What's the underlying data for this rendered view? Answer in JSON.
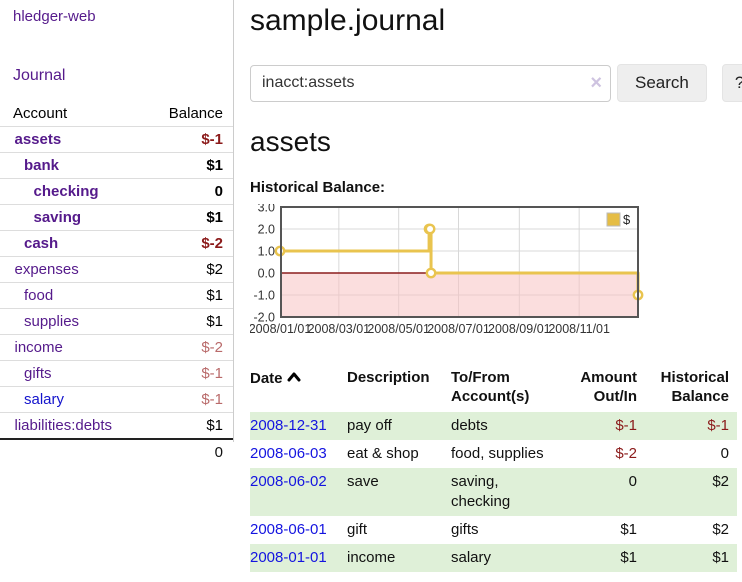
{
  "app": {
    "title": "hledger-web",
    "nav_journal": "Journal"
  },
  "sidebar": {
    "table": {
      "account_header": "Account",
      "balance_header": "Balance",
      "rows": [
        {
          "account": "assets",
          "indent": 1,
          "bold": true,
          "balance": "$-1",
          "balance_style": "neg-strong"
        },
        {
          "account": "bank",
          "indent": 2,
          "bold": true,
          "balance": "$1",
          "balance_style": "normal"
        },
        {
          "account": "checking",
          "indent": 3,
          "bold": true,
          "balance": "0",
          "balance_style": "normal"
        },
        {
          "account": "saving",
          "indent": 3,
          "bold": true,
          "balance": "$1",
          "balance_style": "normal"
        },
        {
          "account": "cash",
          "indent": 2,
          "bold": true,
          "balance": "$-2",
          "balance_style": "neg-strong"
        },
        {
          "account": "expenses",
          "indent": 1,
          "bold": false,
          "balance": "$2",
          "balance_style": "normal"
        },
        {
          "account": "food",
          "indent": 2,
          "bold": false,
          "balance": "$1",
          "balance_style": "normal"
        },
        {
          "account": "supplies",
          "indent": 2,
          "bold": false,
          "balance": "$1",
          "balance_style": "normal"
        },
        {
          "account": "income",
          "indent": 1,
          "bold": false,
          "balance": "$-2",
          "balance_style": "neg-muted"
        },
        {
          "account": "gifts",
          "indent": 2,
          "bold": false,
          "balance": "$-1",
          "balance_style": "neg-muted"
        },
        {
          "account": "salary",
          "indent": 2,
          "bold": false,
          "balance": "$-1",
          "balance_style": "neg-muted",
          "link_style": "blue"
        },
        {
          "account": "liabilities:debts",
          "indent": 1,
          "bold": false,
          "balance": "$1",
          "balance_style": "normal"
        }
      ],
      "total": "0"
    }
  },
  "header": {
    "title": "sample.journal"
  },
  "search": {
    "value": "inacct:assets",
    "clear_icon": "×",
    "button_label": "Search",
    "help_label": "?"
  },
  "account_page": {
    "title": "assets",
    "chart_heading": "Historical Balance:"
  },
  "chart_data": {
    "type": "line",
    "title": "Historical Balance",
    "line_style": "step-after",
    "series": [
      {
        "name": "$",
        "points": [
          [
            "2008-01-01",
            1
          ],
          [
            "2008-06-01",
            2
          ],
          [
            "2008-06-02",
            2
          ],
          [
            "2008-06-03",
            0
          ],
          [
            "2008-12-31",
            -1
          ]
        ]
      }
    ],
    "x_range": [
      "2008-01-01",
      "2008-12-31"
    ],
    "ylim": [
      -2,
      3
    ],
    "y_ticks": [
      "3.0",
      "2.0",
      "1.0",
      "0.0",
      "-1.0",
      "-2.0"
    ],
    "x_ticks": [
      "2008/01/01",
      "2008/03/01",
      "2008/05/01",
      "2008/07/01",
      "2008/09/01",
      "2008/11/01"
    ],
    "grid": true,
    "legend": {
      "position": "top-right",
      "label": "$"
    },
    "colors": {
      "line": "#e9c44f",
      "marker_fill": "#ffffff",
      "negative_region": "#f7c3c3",
      "zero_line": "#8b1d1d",
      "grid": "#d8d8d8",
      "border": "#555555",
      "legend_swatch": "#e5bd45"
    }
  },
  "register": {
    "sort": {
      "column": "Date",
      "direction": "ascending"
    },
    "columns": [
      {
        "label": "Date",
        "align": "left",
        "sortable": true
      },
      {
        "label": "Description",
        "align": "left"
      },
      {
        "label": "To/From Account(s)",
        "align": "left"
      },
      {
        "label": "Amount Out/In",
        "align": "right"
      },
      {
        "label": "Historical Balance",
        "align": "right"
      }
    ],
    "rows": [
      {
        "date": "2008-12-31",
        "description": "pay off",
        "accounts": "debts",
        "amount": "$-1",
        "amount_negative": true,
        "balance": "$-1",
        "balance_negative": true
      },
      {
        "date": "2008-06-03",
        "description": "eat & shop",
        "accounts": "food, supplies",
        "amount": "$-2",
        "amount_negative": true,
        "balance": "0",
        "balance_negative": false
      },
      {
        "date": "2008-06-02",
        "description": "save",
        "accounts": "saving, checking",
        "amount": "0",
        "amount_negative": false,
        "balance": "$2",
        "balance_negative": false
      },
      {
        "date": "2008-06-01",
        "description": "gift",
        "accounts": "gifts",
        "amount": "$1",
        "amount_negative": false,
        "balance": "$2",
        "balance_negative": false
      },
      {
        "date": "2008-01-01",
        "description": "income",
        "accounts": "salary",
        "amount": "$1",
        "amount_negative": false,
        "balance": "$1",
        "balance_negative": false
      }
    ]
  }
}
